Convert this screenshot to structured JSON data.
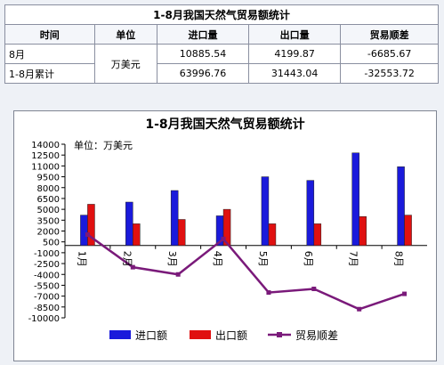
{
  "table": {
    "title": "1-8月我国天然气贸易额统计",
    "headers": [
      "时间",
      "单位",
      "进口量",
      "出口量",
      "贸易顺差"
    ],
    "unit": "万美元",
    "rows": [
      {
        "period": "8月",
        "import": "10885.54",
        "export": "4199.87",
        "balance": "-6685.67"
      },
      {
        "period": "1-8月累计",
        "import": "63996.76",
        "export": "31443.04",
        "balance": "-32553.72"
      }
    ]
  },
  "chart_data": {
    "type": "bar",
    "title": "1-8月我国天然气贸易额统计",
    "unit_label": "单位：万美元",
    "categories": [
      "1月",
      "2月",
      "3月",
      "4月",
      "5月",
      "6月",
      "7月",
      "8月"
    ],
    "ylim": [
      -10000,
      14000
    ],
    "yticks": [
      14000,
      12500,
      11000,
      9500,
      8000,
      6500,
      5000,
      3500,
      2000,
      500,
      -1000,
      -2500,
      -4000,
      -5500,
      -7000,
      -8500,
      -10000
    ],
    "series": [
      {
        "name": "进口额",
        "kind": "bar",
        "color": "#1a1adb",
        "values": [
          4200,
          6000,
          7600,
          4100,
          9500,
          9000,
          12800,
          10886
        ]
      },
      {
        "name": "出口额",
        "kind": "bar",
        "color": "#e01010",
        "values": [
          5700,
          3000,
          3600,
          5000,
          3000,
          3000,
          4000,
          4200
        ]
      },
      {
        "name": "贸易顺差",
        "kind": "line",
        "color": "#7a1a7a",
        "values": [
          1500,
          -3000,
          -4000,
          900,
          -6500,
          -6000,
          -8800,
          -6686
        ]
      }
    ],
    "legend_position": "bottom",
    "grid": false
  }
}
